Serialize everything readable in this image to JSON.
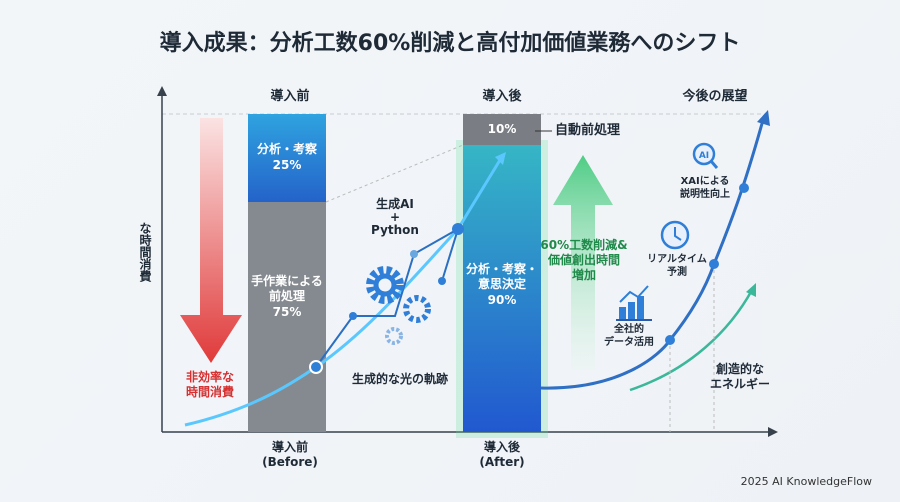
{
  "title": "導入成果：分析工数60%削減と高付加価値業務へのシフト",
  "headers": {
    "before": "導入前",
    "after": "導入後",
    "future": "今後の展望"
  },
  "y_axis_label": "な時間消費",
  "before_bar": {
    "analysis": "分析・考察\n25%",
    "manual": "手作業による前処理\n75%",
    "analysis_pct": 25,
    "manual_pct": 75
  },
  "after_bar": {
    "auto": "10%",
    "analysis": "分析・考察・意思決定\n90%",
    "auto_pct": 10,
    "analysis_pct": 90,
    "auto_callout": "自動前処理"
  },
  "inefficient": "非効率な\n時間消費",
  "genai": "生成AI\n+\nPython",
  "trail": "生成的な光の軌跡",
  "reduction": "60%工数削減&\n価値創出時間\n増加",
  "milestones": [
    "全社的\nデータ活用",
    "リアルタイム\n予測",
    "XAIによる\n説明性向上"
  ],
  "creative": "創造的な\nエネルギー",
  "x_labels": {
    "before": "導入前\n(Before)",
    "after": "導入後\n(After)"
  },
  "footer": "2025 AI KnowledgeFlow",
  "colors": {
    "blue": "#2f7fd8",
    "gray": "#7d8288",
    "red": "#e03a3a",
    "green": "#3dc878"
  }
}
